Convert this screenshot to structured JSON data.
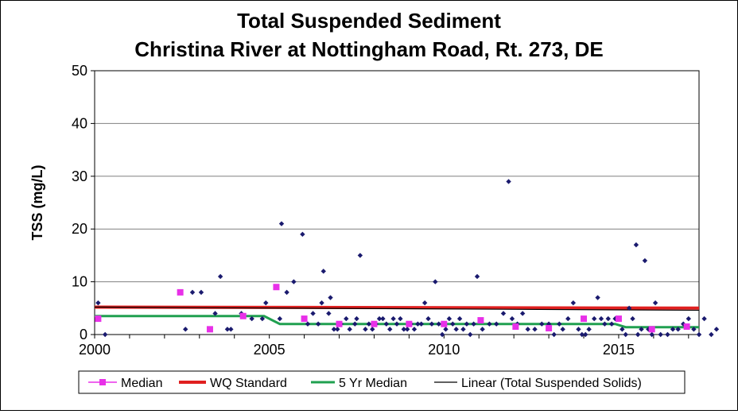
{
  "chart_data": {
    "type": "scatter",
    "title": "Total Suspended Sediment",
    "subtitle": "Christina River at Nottingham Road, Rt. 273, DE",
    "ylabel": "TSS (mg/L)",
    "xlabel": "",
    "xlim": [
      2000,
      2017.3
    ],
    "ylim": [
      0,
      50
    ],
    "x_ticks": [
      "2000",
      "2005",
      "2010",
      "2015"
    ],
    "x_tick_values": [
      2000,
      2005,
      2010,
      2015
    ],
    "y_ticks": [
      "0",
      "10",
      "20",
      "30",
      "40",
      "50"
    ],
    "y_tick_values": [
      0,
      10,
      20,
      30,
      40,
      50
    ],
    "grid": "horizontal",
    "legend_position": "bottom",
    "colors": {
      "observations": "#1a1a6e",
      "median": "#e830e8",
      "wq_standard": "#e02020",
      "five_yr_median": "#20a050",
      "linear": "#000000"
    },
    "legend": [
      {
        "label": "Median",
        "series": "median"
      },
      {
        "label": "WQ Standard",
        "series": "wq_standard"
      },
      {
        "label": "5 Yr Median",
        "series": "five_yr_median"
      },
      {
        "label": "Linear (Total Suspended Solids)",
        "series": "linear"
      }
    ],
    "observations": [
      [
        2000.1,
        6
      ],
      [
        2000.3,
        0
      ],
      [
        2002.6,
        1
      ],
      [
        2002.8,
        8
      ],
      [
        2003.05,
        8
      ],
      [
        2003.3,
        1
      ],
      [
        2003.45,
        4
      ],
      [
        2003.6,
        11
      ],
      [
        2003.8,
        1
      ],
      [
        2003.9,
        1
      ],
      [
        2004.2,
        4
      ],
      [
        2004.5,
        3
      ],
      [
        2004.8,
        3
      ],
      [
        2004.9,
        6
      ],
      [
        2005.3,
        3
      ],
      [
        2005.35,
        21
      ],
      [
        2005.5,
        8
      ],
      [
        2005.7,
        10
      ],
      [
        2005.95,
        19
      ],
      [
        2006.1,
        2
      ],
      [
        2006.25,
        4
      ],
      [
        2006.4,
        2
      ],
      [
        2006.5,
        6
      ],
      [
        2006.55,
        12
      ],
      [
        2006.7,
        4
      ],
      [
        2006.75,
        7
      ],
      [
        2006.85,
        1
      ],
      [
        2006.95,
        1
      ],
      [
        2007.05,
        2
      ],
      [
        2007.2,
        3
      ],
      [
        2007.3,
        1
      ],
      [
        2007.45,
        2
      ],
      [
        2007.5,
        3
      ],
      [
        2007.6,
        15
      ],
      [
        2007.75,
        1
      ],
      [
        2007.85,
        2
      ],
      [
        2007.95,
        1
      ],
      [
        2008.05,
        2
      ],
      [
        2008.15,
        3
      ],
      [
        2008.25,
        3
      ],
      [
        2008.35,
        2
      ],
      [
        2008.45,
        1
      ],
      [
        2008.55,
        3
      ],
      [
        2008.65,
        2
      ],
      [
        2008.75,
        3
      ],
      [
        2008.85,
        1
      ],
      [
        2008.95,
        1
      ],
      [
        2009.05,
        2
      ],
      [
        2009.15,
        1
      ],
      [
        2009.25,
        2
      ],
      [
        2009.35,
        2
      ],
      [
        2009.45,
        6
      ],
      [
        2009.55,
        3
      ],
      [
        2009.65,
        2
      ],
      [
        2009.75,
        10
      ],
      [
        2009.85,
        2
      ],
      [
        2009.95,
        0
      ],
      [
        2010.05,
        1
      ],
      [
        2010.15,
        3
      ],
      [
        2010.25,
        2
      ],
      [
        2010.35,
        1
      ],
      [
        2010.45,
        3
      ],
      [
        2010.55,
        1
      ],
      [
        2010.65,
        2
      ],
      [
        2010.75,
        0
      ],
      [
        2010.85,
        2
      ],
      [
        2010.95,
        11
      ],
      [
        2011.1,
        1
      ],
      [
        2011.3,
        2
      ],
      [
        2011.5,
        2
      ],
      [
        2011.7,
        4
      ],
      [
        2011.85,
        29
      ],
      [
        2011.95,
        3
      ],
      [
        2012.1,
        2
      ],
      [
        2012.25,
        4
      ],
      [
        2012.4,
        1
      ],
      [
        2012.6,
        1
      ],
      [
        2012.8,
        2
      ],
      [
        2013.0,
        2
      ],
      [
        2013.15,
        0
      ],
      [
        2013.3,
        2
      ],
      [
        2013.4,
        1
      ],
      [
        2013.55,
        3
      ],
      [
        2013.7,
        6
      ],
      [
        2013.85,
        1
      ],
      [
        2013.95,
        0
      ],
      [
        2014.05,
        0
      ],
      [
        2014.15,
        1
      ],
      [
        2014.3,
        3
      ],
      [
        2014.4,
        7
      ],
      [
        2014.5,
        3
      ],
      [
        2014.6,
        2
      ],
      [
        2014.7,
        3
      ],
      [
        2014.8,
        2
      ],
      [
        2014.9,
        3
      ],
      [
        2015.0,
        3
      ],
      [
        2015.1,
        1
      ],
      [
        2015.2,
        0
      ],
      [
        2015.3,
        5
      ],
      [
        2015.4,
        3
      ],
      [
        2015.5,
        17
      ],
      [
        2015.55,
        0
      ],
      [
        2015.65,
        1
      ],
      [
        2015.75,
        14
      ],
      [
        2015.85,
        1
      ],
      [
        2015.95,
        0
      ],
      [
        2016.05,
        6
      ],
      [
        2016.2,
        0
      ],
      [
        2016.4,
        0
      ],
      [
        2016.55,
        1
      ],
      [
        2016.7,
        1
      ],
      [
        2016.85,
        2
      ],
      [
        2017.0,
        3
      ],
      [
        2017.15,
        1
      ],
      [
        2017.3,
        0
      ],
      [
        2017.45,
        3
      ],
      [
        2017.65,
        0
      ],
      [
        2017.8,
        1
      ]
    ],
    "median": [
      [
        2000.1,
        3
      ],
      [
        2002.45,
        8
      ],
      [
        2003.3,
        1
      ],
      [
        2004.25,
        3.5
      ],
      [
        2005.2,
        9
      ],
      [
        2006.0,
        3
      ],
      [
        2007.0,
        2
      ],
      [
        2008.0,
        2
      ],
      [
        2009.0,
        2
      ],
      [
        2010.0,
        2
      ],
      [
        2011.05,
        2.7
      ],
      [
        2012.05,
        1.5
      ],
      [
        2013.0,
        1.2
      ],
      [
        2014.0,
        3
      ],
      [
        2015.0,
        3
      ],
      [
        2015.95,
        1
      ],
      [
        2016.95,
        1.5
      ]
    ],
    "wq_standard": [
      [
        2000,
        5.2
      ],
      [
        2017.3,
        5.0
      ]
    ],
    "five_yr_median": [
      [
        2000,
        3.5
      ],
      [
        2004.85,
        3.5
      ],
      [
        2005.3,
        2
      ],
      [
        2010.0,
        2
      ],
      [
        2014.9,
        2
      ],
      [
        2015.2,
        1.4
      ],
      [
        2017.3,
        1.4
      ]
    ],
    "linear": [
      [
        2000,
        5.2
      ],
      [
        2017.3,
        4.6
      ]
    ]
  }
}
